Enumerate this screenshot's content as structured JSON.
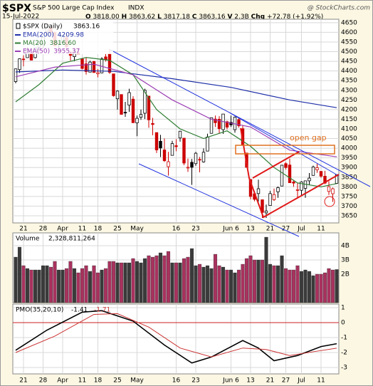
{
  "header": {
    "symbol": "$SPX",
    "name": "S&P 500 Large Cap Index",
    "exchange": "INDX",
    "source": "@ StockCharts.com",
    "date": "15-Jul-2022",
    "quote": [
      "O",
      "3818.00",
      "H",
      "3863.62",
      "L",
      "3817.18",
      "C",
      "3863.16",
      "V",
      "2.3B",
      "Chg",
      "+72.78 (+1.92%)"
    ]
  },
  "annotation": "open gap",
  "chart_data": [
    {
      "type": "candlestick",
      "name": "$SPX (Daily)",
      "legend_label": "3863.16",
      "up_color": "#000000",
      "down_color": "#cc0000",
      "categories": [
        null,
        null,
        "21",
        null,
        null,
        null,
        null,
        "28",
        null,
        null,
        null,
        null,
        "Apr",
        null,
        null,
        null,
        null,
        "11",
        null,
        null,
        null,
        "18",
        null,
        null,
        null,
        null,
        "25",
        null,
        null,
        null,
        null,
        "May",
        null,
        null,
        null,
        null,
        null,
        null,
        null,
        null,
        null,
        "16",
        null,
        null,
        null,
        null,
        "23",
        null,
        null,
        null,
        null,
        null,
        null,
        null,
        null,
        "Jun 6",
        null,
        null,
        null,
        null,
        "13",
        null,
        null,
        null,
        null,
        "21",
        null,
        null,
        null,
        "27",
        null,
        null,
        null,
        "Jul",
        null,
        null,
        null,
        null,
        "11",
        null,
        null,
        null,
        null
      ],
      "open": [
        4345,
        4407,
        4462,
        4469,
        4493,
        4469,
        4523,
        4541,
        4602,
        4624,
        4599,
        4540,
        4547,
        4573,
        4495,
        4474,
        4494,
        4462,
        4437,
        4394,
        4449,
        4385,
        4390,
        4473,
        4489,
        4385,
        4256,
        4278,
        4186,
        4223,
        4254,
        4131,
        4160,
        4181,
        4270,
        4128,
        4081,
        4036,
        3991,
        3904,
        3963,
        4013,
        4053,
        4052,
        3900,
        3927,
        3920,
        3942,
        3929,
        3985,
        4077,
        4151,
        4150,
        4096,
        4137,
        4134,
        4096,
        4148,
        4101,
        3975,
        3838,
        3764,
        3765,
        3733,
        3665,
        3703,
        3733,
        3774,
        3804,
        3920,
        3913,
        3825,
        3785,
        3782,
        3792,
        3831,
        3859,
        3888,
        3880,
        3855,
        3776,
        3764,
        3818
      ],
      "high": [
        4412,
        4465,
        4481,
        4522,
        4501,
        4520,
        4546,
        4575,
        4637,
        4627,
        4604,
        4548,
        4583,
        4593,
        4504,
        4521,
        4520,
        4464,
        4471,
        4453,
        4452,
        4410,
        4471,
        4489,
        4513,
        4386,
        4300,
        4278,
        4240,
        4308,
        4269,
        4169,
        4200,
        4308,
        4270,
        4157,
        4081,
        4069,
        4050,
        3981,
        4038,
        4047,
        4090,
        4052,
        3946,
        3944,
        3981,
        3955,
        3999,
        4075,
        4158,
        4169,
        4166,
        4177,
        4143,
        4169,
        4164,
        4160,
        4119,
        3975,
        3838,
        3778,
        3837,
        3733,
        3708,
        3779,
        3791,
        3802,
        3913,
        3928,
        3946,
        3836,
        3818,
        3829,
        3832,
        3871,
        3910,
        3919,
        3880,
        3883,
        3829,
        3796,
        3863.62
      ],
      "low": [
        4336,
        4390,
        4424,
        4469,
        4455,
        4465,
        4501,
        4517,
        4582,
        4588,
        4530,
        4507,
        4539,
        4514,
        4453,
        4451,
        4487,
        4409,
        4381,
        4393,
        4391,
        4367,
        4390,
        4449,
        4385,
        4267,
        4200,
        4175,
        4162,
        4188,
        4131,
        4062,
        4147,
        4151,
        4106,
        4067,
        3975,
        3954,
        3929,
        3858,
        3963,
        3984,
        4034,
        3912,
        3877,
        3810,
        3909,
        3875,
        3925,
        3985,
        4077,
        4110,
        4074,
        4074,
        4097,
        4110,
        4080,
        4107,
        4017,
        3900,
        3735,
        3725,
        3723,
        3639,
        3639,
        3703,
        3727,
        3743,
        3804,
        3889,
        3820,
        3800,
        3739,
        3752,
        3743,
        3811,
        3859,
        3872,
        3847,
        3814,
        3758,
        3722,
        3817.18
      ],
      "close": [
        4411,
        4463,
        4461,
        4512,
        4456,
        4520,
        4543,
        4575,
        4632,
        4602,
        4530,
        4546,
        4583,
        4525,
        4481,
        4500,
        4488,
        4413,
        4397,
        4446,
        4392,
        4391,
        4463,
        4459,
        4393,
        4272,
        4296,
        4175,
        4184,
        4288,
        4132,
        4155,
        4175,
        4300,
        4147,
        4123,
        3991,
        4001,
        3935,
        3930,
        4024,
        4008,
        4088,
        3923,
        3901,
        3901,
        3974,
        3941,
        3979,
        4058,
        4158,
        4132,
        4101,
        4177,
        4109,
        4121,
        4161,
        4116,
        4018,
        3901,
        3750,
        3735,
        3790,
        3667,
        3675,
        3765,
        3760,
        3796,
        3912,
        3900,
        3821,
        3819,
        3785,
        3825,
        3831,
        3845,
        3903,
        3899,
        3855,
        3819,
        3801,
        3790,
        3863.16
      ],
      "ylim": [
        3613,
        4668
      ],
      "yticks": [
        3650,
        3700,
        3750,
        3800,
        3850,
        3900,
        3950,
        4000,
        4050,
        4100,
        4150,
        4200,
        4250,
        4300,
        4350,
        4400,
        4450,
        4500,
        4550,
        4600,
        4650
      ],
      "series": [
        {
          "name": "EMA(200)",
          "legend_label": "4209.98",
          "color": "#1f2fa8",
          "x": [
            0,
            12,
            25,
            40,
            55,
            70,
            82
          ],
          "values": [
            4395,
            4405,
            4398,
            4360,
            4315,
            4250,
            4209.98
          ]
        },
        {
          "name": "MA(20)",
          "legend_label": "3816.60",
          "color": "#2e7d32",
          "x": [
            0,
            6,
            12,
            18,
            24,
            30,
            36,
            42,
            48,
            54,
            60,
            66,
            72,
            78,
            82
          ],
          "values": [
            4240,
            4330,
            4440,
            4470,
            4455,
            4380,
            4200,
            4100,
            4050,
            4090,
            4010,
            3900,
            3820,
            3800,
            3816.6
          ]
        },
        {
          "name": "EMA(50)",
          "legend_label": "3955.37",
          "color": "#9c3fb5",
          "x": [
            0,
            10,
            20,
            30,
            40,
            50,
            60,
            70,
            82
          ],
          "values": [
            4370,
            4420,
            4435,
            4380,
            4250,
            4150,
            4110,
            3990,
            3955.37
          ]
        }
      ]
    },
    {
      "type": "bar",
      "name": "Volume",
      "value_label": "2,328,811,264",
      "up_color": "#3a3a3a",
      "down_color": "#a8325e",
      "values": [
        3200000000.0,
        3900000000.0,
        2600000000.0,
        2400000000.0,
        2300000000.0,
        2300000000.0,
        2300000000.0,
        2600000000.0,
        2600000000.0,
        2500000000.0,
        2900000000.0,
        2300000000.0,
        2300000000.0,
        2400000000.0,
        2900000000.0,
        2400000000.0,
        2100000000.0,
        2400000000.0,
        2600000000.0,
        2200000000.0,
        2600000000.0,
        2100000000.0,
        2300000000.0,
        2400000000.0,
        2900000000.0,
        2900000000.0,
        2800000000.0,
        2800000000.0,
        2800000000.0,
        2800000000.0,
        3100000000.0,
        2900000000.0,
        2800000000.0,
        3100000000.0,
        3300000000.0,
        3200000000.0,
        3300000000.0,
        3500000000.0,
        3300000000.0,
        3600000000.0,
        2800000000.0,
        2800000000.0,
        2800000000.0,
        3100000000.0,
        3200000000.0,
        3800000000.0,
        2600000000.0,
        2700000000.0,
        2500000000.0,
        2600000000.0,
        2400000000.0,
        3400000000.0,
        2600000000.0,
        2500000000.0,
        2300000000.0,
        2300000000.0,
        2100000000.0,
        2300000000.0,
        2700000000.0,
        3100000000.0,
        3300000000.0,
        3000000000.0,
        3000000000.0,
        3000000000.0,
        4600000000.0,
        2700000000.0,
        2600000000.0,
        2600000000.0,
        3300000000.0,
        2400000000.0,
        2300000000.0,
        2300000000.0,
        2600000000.0,
        2200000000.0,
        2300000000.0,
        2200000000.0,
        1900000000.0,
        2000000000.0,
        2000000000.0,
        2100000000.0,
        2400000000.0,
        2300000000.0,
        2328811264
      ],
      "ylim": [
        0,
        4900000000
      ],
      "yticks": [
        {
          "value": 2000000000,
          "label": "2B"
        },
        {
          "value": 3000000000,
          "label": "3B"
        },
        {
          "value": 4000000000,
          "label": "4B"
        }
      ]
    },
    {
      "type": "line",
      "name": "PMO(35,20,10)",
      "zero_line_color": "#cc2222",
      "ylim": [
        -3.43,
        1.24
      ],
      "yticks": [
        1,
        0,
        -1,
        -2,
        -3
      ],
      "series": [
        {
          "legend_label": "-1.41",
          "color": "#000000",
          "x": [
            0,
            8,
            17,
            22,
            30,
            38,
            45,
            50,
            58,
            62,
            66,
            72,
            78,
            82
          ],
          "values": [
            -1.85,
            -0.5,
            0.7,
            0.8,
            0.1,
            -1.5,
            -2.7,
            -2.3,
            -1.2,
            -1.7,
            -2.55,
            -2.2,
            -1.6,
            -1.41
          ]
        },
        {
          "legend_label": "-1.71",
          "color": "#cc3333",
          "x": [
            0,
            10,
            20,
            26,
            34,
            42,
            50,
            58,
            64,
            70,
            76,
            82
          ],
          "values": [
            -2.0,
            -0.9,
            0.55,
            0.6,
            -0.3,
            -1.7,
            -2.3,
            -1.7,
            -1.8,
            -2.2,
            -1.95,
            -1.71
          ]
        }
      ]
    }
  ]
}
